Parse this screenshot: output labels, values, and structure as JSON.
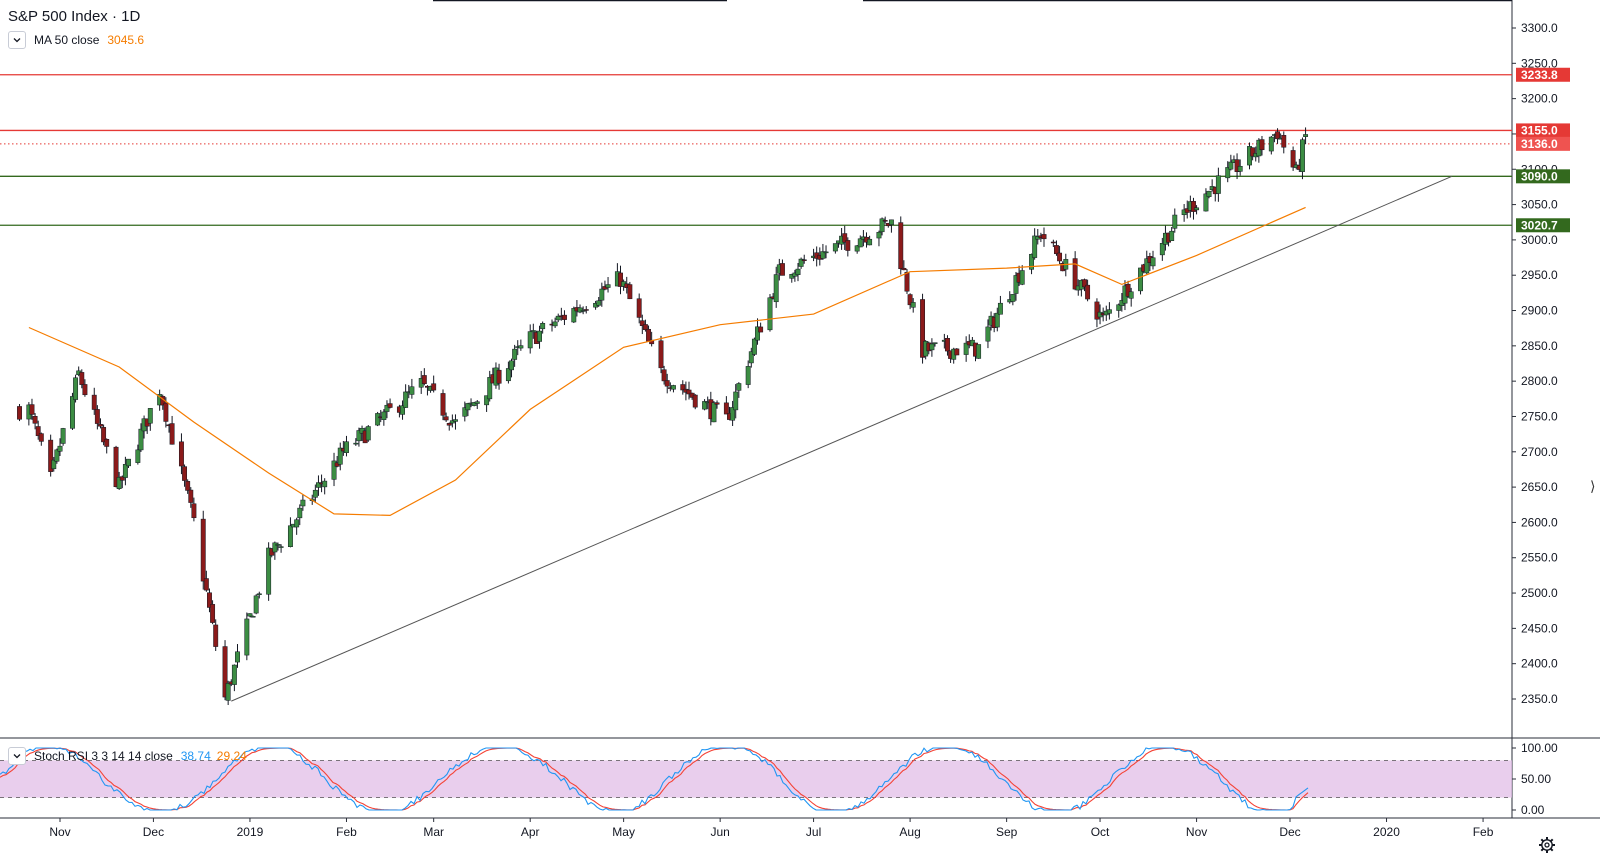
{
  "header": {
    "symbol_title": "S&P 500 Index · 1D",
    "ma_label": "MA 50 close",
    "ma_value": "3045.6",
    "stoch_label": "Stoch RSI 3 3 14 14 close",
    "stoch_k": "38.74",
    "stoch_d": "29.24"
  },
  "colors": {
    "up": "#3c8d43",
    "down": "#8b1a1a",
    "ma": "#f57c00",
    "resistance": "#e53935",
    "support": "#33691e",
    "trendline": "#555555",
    "stoch_k": "#2196f3",
    "stoch_d": "#f44336",
    "stoch_band": "#e1bee7"
  },
  "chart_data": {
    "type": "candlestick",
    "interval": "1D",
    "y_axis": {
      "ticks": [
        "3300.0",
        "3250.0",
        "3200.0",
        "3150.0",
        "3100.0",
        "3050.0",
        "3000.0",
        "2950.0",
        "2900.0",
        "2850.0",
        "2800.0",
        "2750.0",
        "2700.0",
        "2650.0",
        "2600.0",
        "2550.0",
        "2500.0",
        "2450.0",
        "2400.0",
        "2350.0"
      ],
      "range": [
        2318,
        3320
      ]
    },
    "x_axis": {
      "ticks": [
        "Nov",
        "Dec",
        "2019",
        "Feb",
        "Mar",
        "Apr",
        "May",
        "Jun",
        "Jul",
        "Aug",
        "Sep",
        "Oct",
        "Nov",
        "Dec",
        "2020",
        "Feb"
      ]
    },
    "price_levels": [
      {
        "label": "3233.8",
        "value": 3233.8,
        "style": "solid",
        "kind": "resistance"
      },
      {
        "label": "3155.0",
        "value": 3155.0,
        "style": "solid",
        "kind": "resistance"
      },
      {
        "label": "3136.0",
        "value": 3136.0,
        "style": "dotted",
        "kind": "last"
      },
      {
        "label": "3090.0",
        "value": 3090.0,
        "style": "solid",
        "kind": "support"
      },
      {
        "label": "3020.7",
        "value": 3020.7,
        "style": "solid",
        "kind": "support"
      }
    ],
    "trendline": {
      "from": {
        "date": "2018-12-26",
        "value": 2347
      },
      "to": {
        "date": "2020-01-22",
        "value": 3090
      }
    },
    "price_keypoints": [
      {
        "date": "2018-10-22",
        "value": 2760
      },
      {
        "date": "2018-10-29",
        "value": 2660
      },
      {
        "date": "2018-11-07",
        "value": 2810
      },
      {
        "date": "2018-11-20",
        "value": 2650
      },
      {
        "date": "2018-12-03",
        "value": 2790
      },
      {
        "date": "2018-12-14",
        "value": 2600
      },
      {
        "date": "2018-12-24",
        "value": 2351
      },
      {
        "date": "2019-01-07",
        "value": 2550
      },
      {
        "date": "2019-01-31",
        "value": 2700
      },
      {
        "date": "2019-02-25",
        "value": 2795
      },
      {
        "date": "2019-03-08",
        "value": 2740
      },
      {
        "date": "2019-04-01",
        "value": 2860
      },
      {
        "date": "2019-04-30",
        "value": 2945
      },
      {
        "date": "2019-05-13",
        "value": 2812
      },
      {
        "date": "2019-06-03",
        "value": 2744
      },
      {
        "date": "2019-06-20",
        "value": 2954
      },
      {
        "date": "2019-07-26",
        "value": 3025
      },
      {
        "date": "2019-08-05",
        "value": 2844
      },
      {
        "date": "2019-08-23",
        "value": 2847
      },
      {
        "date": "2019-09-12",
        "value": 3010
      },
      {
        "date": "2019-10-02",
        "value": 2887
      },
      {
        "date": "2019-10-28",
        "value": 3040
      },
      {
        "date": "2019-11-27",
        "value": 3153
      },
      {
        "date": "2019-12-03",
        "value": 3093
      },
      {
        "date": "2019-12-06",
        "value": 3146
      }
    ],
    "ma50_keypoints": [
      {
        "date": "2018-10-22",
        "value": 2876
      },
      {
        "date": "2018-11-20",
        "value": 2820
      },
      {
        "date": "2018-12-14",
        "value": 2742
      },
      {
        "date": "2019-01-07",
        "value": 2670
      },
      {
        "date": "2019-01-28",
        "value": 2612
      },
      {
        "date": "2019-02-15",
        "value": 2610
      },
      {
        "date": "2019-03-08",
        "value": 2660
      },
      {
        "date": "2019-04-01",
        "value": 2760
      },
      {
        "date": "2019-05-01",
        "value": 2848
      },
      {
        "date": "2019-06-01",
        "value": 2880
      },
      {
        "date": "2019-07-01",
        "value": 2895
      },
      {
        "date": "2019-08-01",
        "value": 2955
      },
      {
        "date": "2019-09-01",
        "value": 2960
      },
      {
        "date": "2019-09-23",
        "value": 2966
      },
      {
        "date": "2019-10-08",
        "value": 2937
      },
      {
        "date": "2019-11-01",
        "value": 2978
      },
      {
        "date": "2019-12-06",
        "value": 3046
      }
    ],
    "stoch_rsi": {
      "ticks": [
        "100.00",
        "50.00",
        "0.00"
      ],
      "bands": [
        80,
        20
      ],
      "last_k": 38.74,
      "last_d": 29.24
    }
  }
}
